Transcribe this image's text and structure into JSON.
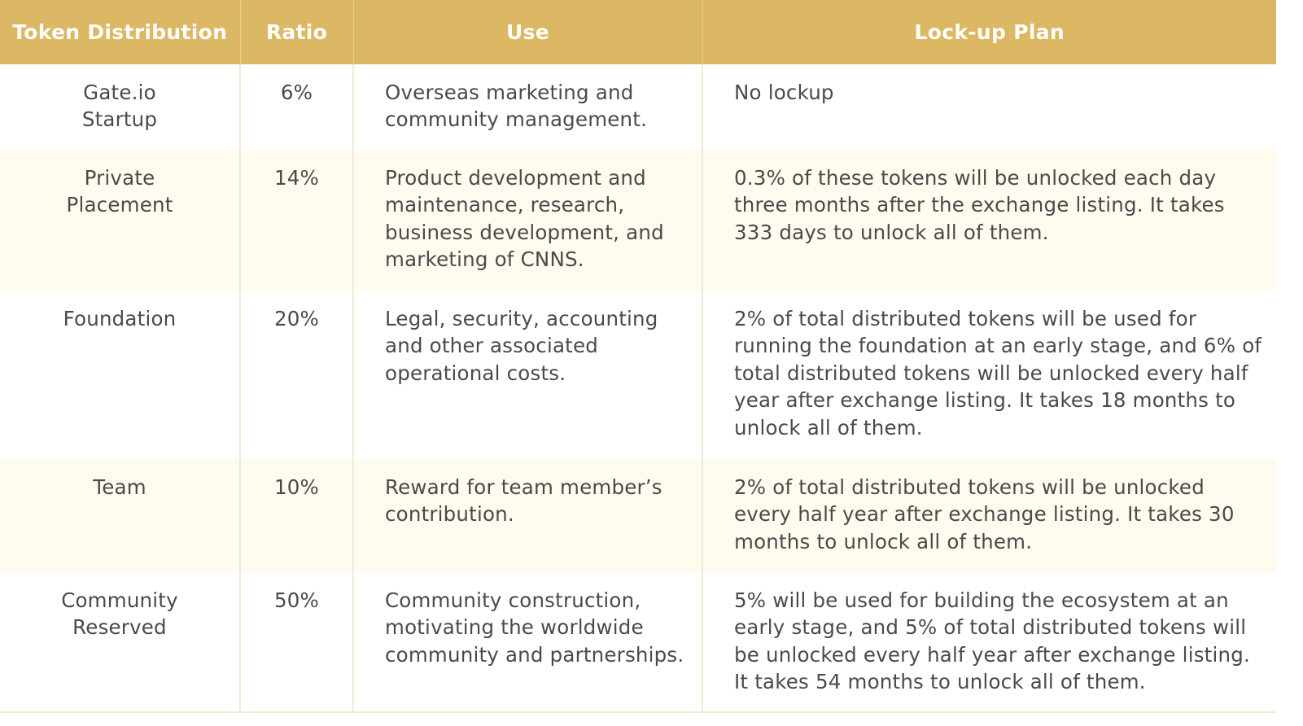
{
  "colors": {
    "header_bg": "#dcb764",
    "header_text": "#ffffff",
    "row_alt_bg": "#fffbef",
    "body_text": "#4a4a4a"
  },
  "headers": [
    "Token Distribution",
    "Ratio",
    "Use",
    "Lock-up Plan"
  ],
  "rows": [
    {
      "distribution_lines": [
        "Gate.io",
        "Startup"
      ],
      "ratio": "6%",
      "use": "Overseas marketing and community management.",
      "plan": "No lockup"
    },
    {
      "distribution_lines": [
        "Private",
        "Placement"
      ],
      "ratio": "14%",
      "use": "Product development and maintenance, research, business development, and marketing of CNNS.",
      "plan": "0.3% of these tokens will be unlocked each day three months after the exchange listing. It takes 333 days to unlock all of them."
    },
    {
      "distribution_lines": [
        "Foundation"
      ],
      "ratio": "20%",
      "use": "Legal, security, accounting and other associated operational costs.",
      "plan": "2% of total distributed tokens will be used for running the foundation at an early stage, and 6% of total distributed tokens will be unlocked every half year after exchange listing. It takes 18 months to unlock all of them."
    },
    {
      "distribution_lines": [
        "Team"
      ],
      "ratio": "10%",
      "use": "Reward for team member’s contribution.",
      "plan": "2% of total distributed tokens will be unlocked every half year after exchange listing. It takes 30 months to unlock all of them."
    },
    {
      "distribution_lines": [
        "Community",
        "Reserved"
      ],
      "ratio": "50%",
      "use": "Community construction, motivating the worldwide community and partnerships.",
      "plan": "5% will be used for building the ecosystem at an early stage, and 5% of total distributed tokens will be unlocked every half year after exchange listing. It takes 54 months to unlock all of them."
    }
  ]
}
